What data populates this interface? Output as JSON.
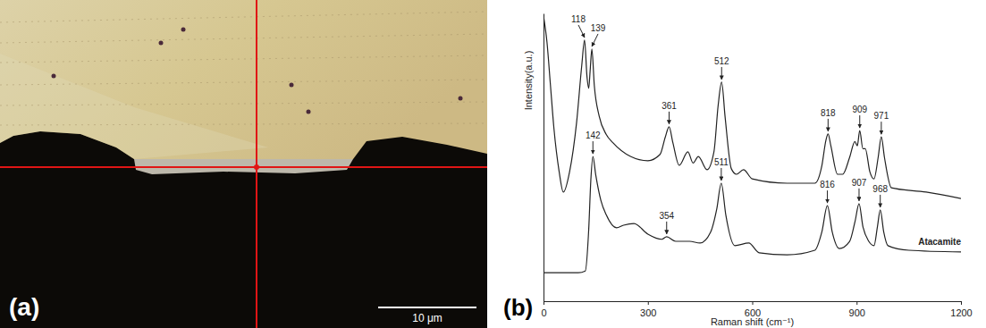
{
  "image": {
    "type": "micrograph",
    "panel_label": "(a)",
    "scale_bar_label": "10 μm"
  },
  "chart_data": {
    "type": "line",
    "panel_label": "(b)",
    "x_label": "Raman shift (cm⁻¹)",
    "y_label": "Intensity(a.u.)",
    "xlim": [
      0,
      1200
    ],
    "xticks": [
      0,
      300,
      600,
      900,
      1200
    ],
    "ylim": [
      0,
      100
    ],
    "tick_labels": "x",
    "grid": false,
    "series": [
      {
        "color": "#222222",
        "x": [
          0,
          10,
          20,
          30,
          45,
          57,
          75,
          95,
          110,
          118,
          125,
          130,
          134,
          139,
          146,
          160,
          180,
          200,
          250,
          300,
          335,
          350,
          361,
          372,
          390,
          415,
          430,
          445,
          470,
          490,
          502,
          512,
          522,
          540,
          555,
          575,
          600,
          700,
          780,
          800,
          812,
          818,
          826,
          845,
          860,
          880,
          895,
          902,
          909,
          918,
          925,
          938,
          950,
          962,
          971,
          980,
          1000,
          1100,
          1200
        ],
        "values": [
          99.1,
          90,
          75,
          60,
          45,
          37.9,
          45,
          62,
          82,
          90.7,
          78,
          74,
          80,
          87.6,
          75,
          64.3,
          58,
          55.0,
          50.3,
          48.8,
          51,
          57,
          60.6,
          55,
          47.2,
          51.9,
          48,
          50.3,
          45.7,
          52,
          68,
          76.1,
          64,
          46,
          44.1,
          45.7,
          42.5,
          41.0,
          41.0,
          47,
          56,
          58.1,
          54,
          44.1,
          44.1,
          50,
          55.5,
          54,
          59.3,
          53,
          53,
          45,
          42.5,
          50,
          57.1,
          50,
          39.4,
          37.9,
          35.7
        ]
      },
      {
        "name": "Atacamite",
        "color": "#222222",
        "x": [
          0,
          100,
          120,
          130,
          136,
          142,
          150,
          165,
          180,
          210,
          230,
          260,
          300,
          340,
          354,
          380,
          420,
          450,
          480,
          498,
          511,
          524,
          550,
          590,
          620,
          700,
          780,
          800,
          816,
          830,
          850,
          880,
          896,
          907,
          918,
          935,
          950,
          960,
          968,
          978,
          990,
          1050,
          1200
        ],
        "values": [
          9.9,
          9.9,
          10.5,
          25,
          42,
          50.3,
          44,
          35,
          30.1,
          25.5,
          26.4,
          27.0,
          23.3,
          21.5,
          22.4,
          20.8,
          20.8,
          20.2,
          23.9,
          32,
          41.0,
          30,
          19.3,
          20.2,
          16.8,
          16.1,
          17.7,
          24,
          33.2,
          24,
          18.3,
          20.8,
          28,
          33.9,
          26,
          20.8,
          19.3,
          26,
          31.7,
          24,
          19.3,
          17.7,
          17.1
        ]
      }
    ],
    "annotations": [
      {
        "label": "118",
        "x": 118,
        "y": 90.7,
        "series": 0
      },
      {
        "label": "139",
        "x": 139,
        "y": 87.6,
        "series": 0
      },
      {
        "label": "361",
        "x": 361,
        "y": 60.6,
        "series": 0
      },
      {
        "label": "512",
        "x": 512,
        "y": 76.1,
        "series": 0
      },
      {
        "label": "818",
        "x": 818,
        "y": 58.1,
        "series": 0
      },
      {
        "label": "909",
        "x": 909,
        "y": 59.3,
        "series": 0
      },
      {
        "label": "971",
        "x": 971,
        "y": 57.1,
        "series": 0
      },
      {
        "label": "142",
        "x": 142,
        "y": 50.3,
        "series": 1
      },
      {
        "label": "354",
        "x": 354,
        "y": 22.4,
        "series": 1
      },
      {
        "label": "511",
        "x": 511,
        "y": 41.0,
        "series": 1
      },
      {
        "label": "816",
        "x": 816,
        "y": 33.2,
        "series": 1
      },
      {
        "label": "907",
        "x": 907,
        "y": 33.9,
        "series": 1
      },
      {
        "label": "968",
        "x": 968,
        "y": 31.7,
        "series": 1
      }
    ]
  }
}
